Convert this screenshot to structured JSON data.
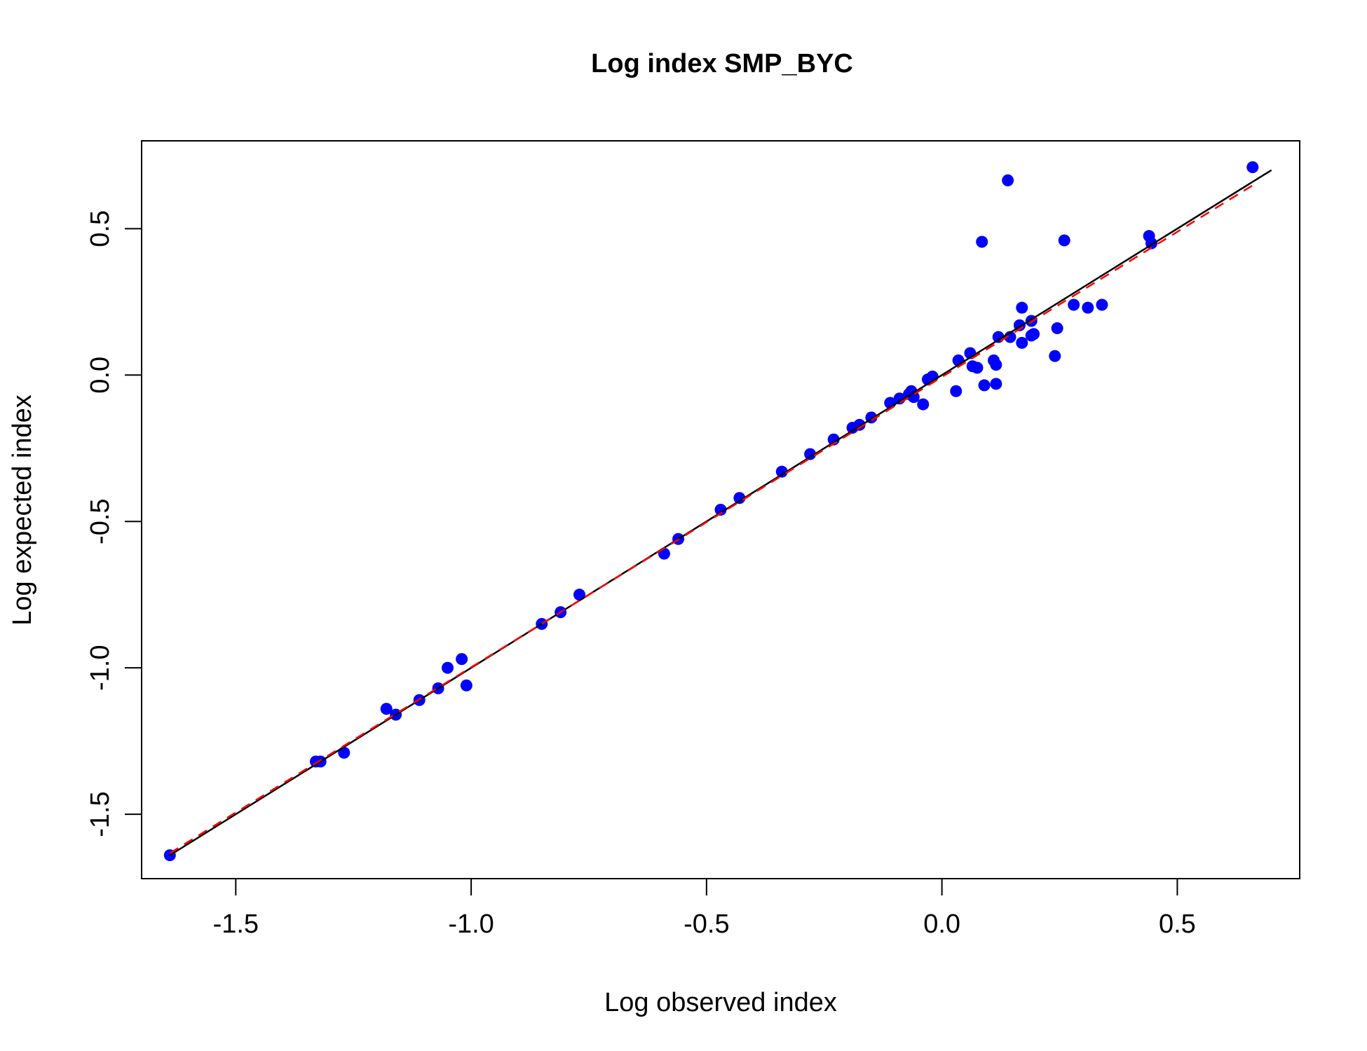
{
  "chart_data": {
    "type": "scatter",
    "title": "Log index SMP_BYC",
    "xlabel": "Log observed index",
    "ylabel": "Log expected index",
    "xlim": [
      -1.7,
      0.76
    ],
    "ylim": [
      -1.72,
      0.8
    ],
    "xticks": [
      -1.5,
      -1.0,
      -0.5,
      0.0,
      0.5
    ],
    "xtick_labels": [
      "-1.5",
      "-1.0",
      "-0.5",
      "0.0",
      "0.5"
    ],
    "yticks": [
      -1.5,
      -1.0,
      -0.5,
      0.0,
      0.5
    ],
    "ytick_labels": [
      "-1.5",
      "-1.0",
      "-0.5",
      "0.0",
      "0.5"
    ],
    "grid": false,
    "point_color": "#0000ff",
    "points": [
      {
        "x": -1.64,
        "y": -1.64
      },
      {
        "x": -1.33,
        "y": -1.32
      },
      {
        "x": -1.32,
        "y": -1.32
      },
      {
        "x": -1.27,
        "y": -1.29
      },
      {
        "x": -1.18,
        "y": -1.14
      },
      {
        "x": -1.16,
        "y": -1.16
      },
      {
        "x": -1.11,
        "y": -1.11
      },
      {
        "x": -1.07,
        "y": -1.07
      },
      {
        "x": -1.05,
        "y": -1.0
      },
      {
        "x": -1.02,
        "y": -0.97
      },
      {
        "x": -1.01,
        "y": -1.06
      },
      {
        "x": -0.85,
        "y": -0.85
      },
      {
        "x": -0.81,
        "y": -0.81
      },
      {
        "x": -0.77,
        "y": -0.75
      },
      {
        "x": -0.59,
        "y": -0.61
      },
      {
        "x": -0.56,
        "y": -0.56
      },
      {
        "x": -0.47,
        "y": -0.46
      },
      {
        "x": -0.43,
        "y": -0.42
      },
      {
        "x": -0.34,
        "y": -0.33
      },
      {
        "x": -0.28,
        "y": -0.27
      },
      {
        "x": -0.23,
        "y": -0.22
      },
      {
        "x": -0.19,
        "y": -0.18
      },
      {
        "x": -0.175,
        "y": -0.17
      },
      {
        "x": -0.15,
        "y": -0.145
      },
      {
        "x": -0.11,
        "y": -0.095
      },
      {
        "x": -0.09,
        "y": -0.08
      },
      {
        "x": -0.07,
        "y": -0.065
      },
      {
        "x": -0.065,
        "y": -0.055
      },
      {
        "x": -0.06,
        "y": -0.075
      },
      {
        "x": -0.04,
        "y": -0.1
      },
      {
        "x": -0.03,
        "y": -0.015
      },
      {
        "x": -0.02,
        "y": -0.005
      },
      {
        "x": 0.03,
        "y": -0.055
      },
      {
        "x": 0.035,
        "y": 0.05
      },
      {
        "x": 0.06,
        "y": 0.075
      },
      {
        "x": 0.065,
        "y": 0.03
      },
      {
        "x": 0.075,
        "y": 0.025
      },
      {
        "x": 0.085,
        "y": 0.455
      },
      {
        "x": 0.09,
        "y": -0.035
      },
      {
        "x": 0.11,
        "y": 0.05
      },
      {
        "x": 0.115,
        "y": 0.035
      },
      {
        "x": 0.115,
        "y": -0.03
      },
      {
        "x": 0.12,
        "y": 0.13
      },
      {
        "x": 0.14,
        "y": 0.665
      },
      {
        "x": 0.145,
        "y": 0.13
      },
      {
        "x": 0.165,
        "y": 0.17
      },
      {
        "x": 0.17,
        "y": 0.11
      },
      {
        "x": 0.17,
        "y": 0.23
      },
      {
        "x": 0.19,
        "y": 0.185
      },
      {
        "x": 0.19,
        "y": 0.135
      },
      {
        "x": 0.195,
        "y": 0.14
      },
      {
        "x": 0.24,
        "y": 0.065
      },
      {
        "x": 0.245,
        "y": 0.16
      },
      {
        "x": 0.26,
        "y": 0.46
      },
      {
        "x": 0.28,
        "y": 0.24
      },
      {
        "x": 0.31,
        "y": 0.23
      },
      {
        "x": 0.34,
        "y": 0.24
      },
      {
        "x": 0.44,
        "y": 0.475
      },
      {
        "x": 0.445,
        "y": 0.45
      },
      {
        "x": 0.66,
        "y": 0.71
      }
    ],
    "lines": [
      {
        "style": "solid",
        "color": "#000000",
        "x": [
          -1.64,
          0.7
        ],
        "y": [
          -1.64,
          0.7
        ]
      },
      {
        "style": "dashed",
        "color": "#ff0000",
        "x": [
          -1.64,
          0.66
        ],
        "y": [
          -1.633,
          0.648
        ]
      }
    ]
  }
}
